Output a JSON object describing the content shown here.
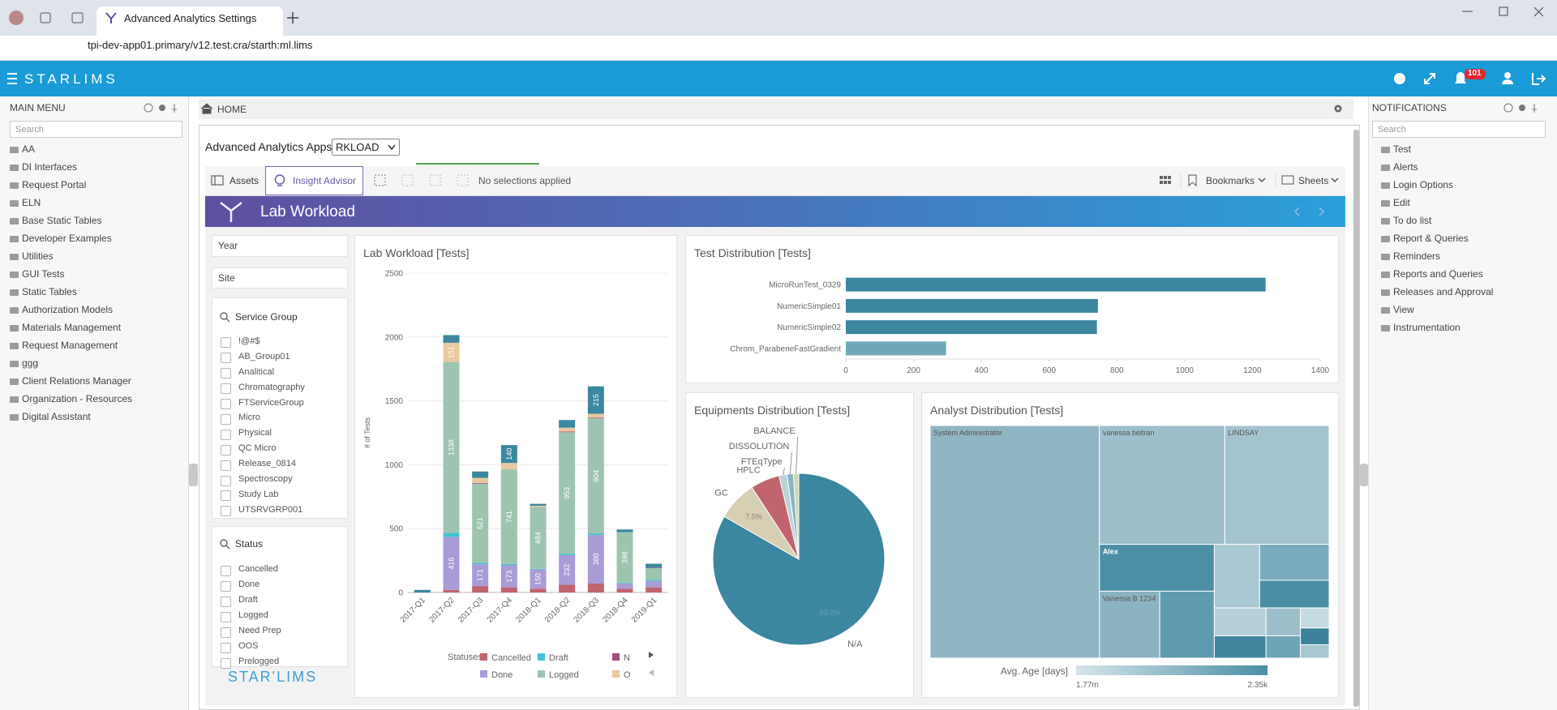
{
  "browser": {
    "tab_title": "Advanced Analytics Settings",
    "url": "tpi-dev-app01.primary/v12.test.cra/starth:ml.lims"
  },
  "app_header": {
    "brand": "STARLIMS",
    "notification_count": "101"
  },
  "main_menu": {
    "title": "MAIN MENU",
    "search": "Search",
    "items": [
      "AA",
      "DI Interfaces",
      "Request Portal",
      "ELN",
      "Base Static Tables",
      "Developer Examples",
      "Utilities",
      "GUI Tests",
      "Static Tables",
      "Authorization Models",
      "Materials Management",
      "Request Management",
      "ggg",
      "Client Relations Manager",
      "Organization - Resources",
      "Digital Assistant"
    ]
  },
  "breadcrumb": "HOME",
  "notifications": {
    "title": "NOTIFICATIONS",
    "search": "Search",
    "items": [
      "Test",
      "Alerts",
      "Login Options",
      "Edit",
      "To do list",
      "Report & Queries",
      "Reminders",
      "Reports and Queries",
      "Releases and Approval",
      "View",
      "Instrumentation"
    ]
  },
  "analytics": {
    "apps_label": "Advanced Analytics Apps:",
    "app_selected": "RKLOAD",
    "toolbar": {
      "assets": "Assets",
      "insight": "Insight Advisor",
      "selections": "No selections applied",
      "bookmarks": "Bookmarks",
      "sheets": "Sheets"
    },
    "sheet_title": "Lab Workload",
    "filters": {
      "year": "Year",
      "site": "Site",
      "service_group": {
        "title": "Service Group",
        "items": [
          "!@#$",
          "AB_Group01",
          "Analitical",
          "Chromatography",
          "FTServiceGroup",
          "Micro",
          "Physical",
          "QC Micro",
          "Release_0814",
          "Spectroscopy",
          "Study Lab",
          "UTSRVGRP001"
        ]
      },
      "status": {
        "title": "Status",
        "items": [
          "Cancelled",
          "Done",
          "Draft",
          "Logged",
          "Need Prep",
          "OOS",
          "Prelogged"
        ]
      }
    },
    "footer_logo": "STAR'LIMS"
  },
  "chart_data": [
    {
      "type": "bar",
      "stacked": true,
      "title": "Lab Workload [Tests]",
      "ylabel": "# of Tests",
      "legend_title": "Statuses",
      "data_labels": true,
      "categories": [
        "2017-Q1",
        "2017-Q2",
        "2017-Q3",
        "2017-Q4",
        "2018-Q1",
        "2018-Q2",
        "2018-Q3",
        "2018-Q4",
        "2019-Q1"
      ],
      "ylim": [
        0,
        2500
      ],
      "yticks": [
        0,
        500,
        1000,
        1500,
        2000,
        2500
      ],
      "grid": true,
      "series": [
        {
          "name": "Cancelled",
          "color": "#c0646e",
          "values": [
            0,
            20,
            50,
            40,
            30,
            60,
            70,
            30,
            40
          ]
        },
        {
          "name": "Done",
          "color": "#a99bd6",
          "values": [
            0,
            416,
            171,
            173,
            150,
            232,
            380,
            40,
            50
          ]
        },
        {
          "name": "Draft",
          "color": "#3fc4cf",
          "values": [
            0,
            30,
            10,
            10,
            5,
            10,
            10,
            5,
            10
          ]
        },
        {
          "name": "Logged",
          "color": "#9dc4b0",
          "values": [
            0,
            1338,
            621,
            741,
            484,
            953,
            904,
            398,
            90
          ]
        },
        {
          "name": "N",
          "color": "#a34c7a",
          "values": [
            0,
            0,
            5,
            0,
            0,
            5,
            5,
            0,
            5
          ]
        },
        {
          "name": "O",
          "color": "#e8c9a0",
          "values": [
            0,
            151,
            40,
            50,
            10,
            30,
            30,
            0,
            0
          ]
        },
        {
          "name": null,
          "color": "#3b87a0",
          "values": [
            20,
            60,
            50,
            140,
            15,
            60,
            215,
            20,
            30
          ]
        }
      ]
    },
    {
      "type": "bar",
      "orientation": "horizontal",
      "title": "Test Distribution [Tests]",
      "categories": [
        "MicroRunTest_0329",
        "NumericSimple01",
        "NumericSimple02",
        "Chrom_ParabeneFastGradient"
      ],
      "values": [
        1239,
        744,
        741,
        296
      ],
      "colors": [
        "#3b87a0",
        "#3b87a0",
        "#3b87a0",
        "#6fa7b8"
      ],
      "xlim": [
        0,
        1400
      ],
      "xticks": [
        0,
        200,
        400,
        600,
        800,
        1000,
        1200,
        1400
      ],
      "grid": false
    },
    {
      "type": "pie",
      "title": "Equipments Distribution [Tests]",
      "categories": [
        "N/A",
        "GC",
        "HPLC",
        "FTEqType",
        "DISSOLUTION",
        "BALANCE"
      ],
      "values": [
        83.3,
        7.5,
        5.5,
        1.5,
        1.2,
        1.0
      ],
      "value_labels": [
        "83.3%",
        "7.5%",
        null,
        null,
        null,
        null
      ],
      "colors": [
        "#3b87a0",
        "#d6cfb4",
        "#c0646e",
        "#b9d3d8",
        "#88b5c4",
        "#cdd9b0"
      ]
    },
    {
      "type": "treemap",
      "title": "Analyst Distribution [Tests]",
      "categories": [
        "System Administrator",
        "vanessa beltran",
        "LINDSAY",
        "Alex",
        "Vanessa B 1234",
        null,
        null,
        null,
        null,
        null,
        null,
        null,
        null,
        null,
        null,
        null
      ],
      "values": [
        4100,
        1550,
        1290,
        560,
        420,
        380,
        300,
        260,
        200,
        150,
        120,
        100,
        80,
        60,
        50,
        40
      ],
      "colors": [
        "#8fb5c3",
        "#9dbecb",
        "#a3c3cf",
        "#4c8fa5",
        "#8cb3c1",
        "#5f9bb0",
        "#a9c8d3",
        "#7aabbd",
        "#4a8ea4",
        "#b5d0d9",
        "#3f869d",
        "#9dbfcb",
        "#6ea4b7",
        "#c5dbe2",
        "#3b829a",
        "#a8c7d2"
      ],
      "color_legend": {
        "title": "Avg. Age [days]",
        "min_label": "1.77m",
        "max_label": "2.35k",
        "colors": [
          "#d6e5ea",
          "#4a8ea4"
        ]
      }
    }
  ]
}
